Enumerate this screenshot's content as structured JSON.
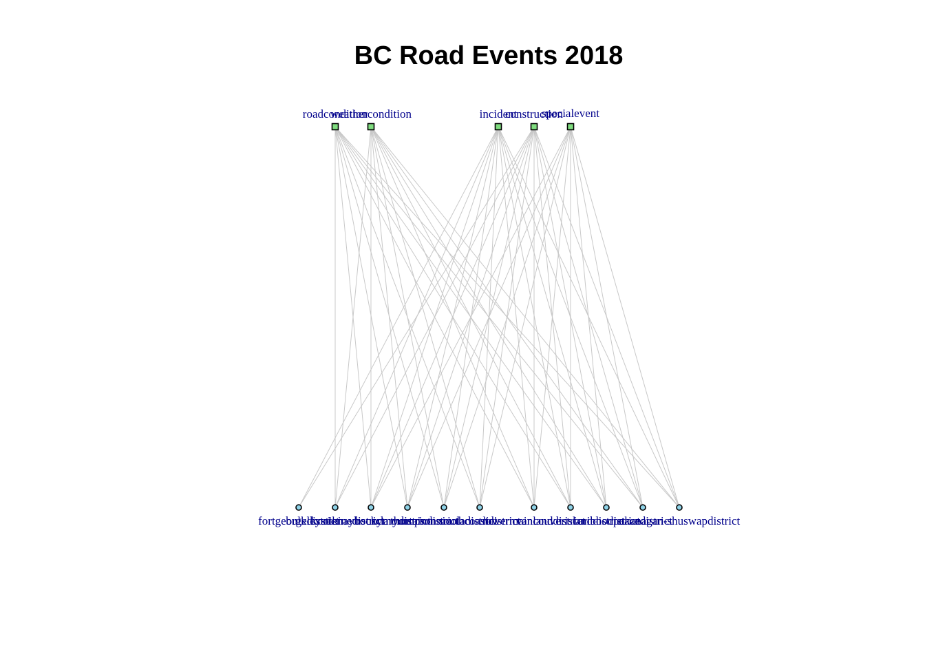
{
  "title": "BC Road Events 2018",
  "colors": {
    "type_node": "#7fdc7f",
    "district_node": "#8fd3e8",
    "edge": "#c8c8c8",
    "label": "#00008b"
  },
  "graph": {
    "layout": "bipartite",
    "event_types": [
      "roadcondition",
      "weathercondition",
      "incident",
      "construction",
      "specialevent"
    ],
    "districts": [
      "fortgeorgedistrict",
      "bulkleystikinedistrict",
      "kootenayboundarydistrict",
      "rockymountaindistrict",
      "thompsonnicoladistrict",
      "southcoastdistrict",
      "lowermainlanddistrict",
      "vancouverislanddistrict",
      "cariboodistrict",
      "peacedistrict",
      "okanagan-shuswapdistrict"
    ],
    "edges": [
      [
        "roadcondition",
        "bulkleystikinedistrict"
      ],
      [
        "roadcondition",
        "kootenayboundarydistrict"
      ],
      [
        "roadcondition",
        "rockymountaindistrict"
      ],
      [
        "roadcondition",
        "thompsonnicoladistrict"
      ],
      [
        "roadcondition",
        "southcoastdistrict"
      ],
      [
        "roadcondition",
        "lowermainlanddistrict"
      ],
      [
        "roadcondition",
        "vancouverislanddistrict"
      ],
      [
        "roadcondition",
        "cariboodistrict"
      ],
      [
        "roadcondition",
        "peacedistrict"
      ],
      [
        "roadcondition",
        "okanagan-shuswapdistrict"
      ],
      [
        "weathercondition",
        "bulkleystikinedistrict"
      ],
      [
        "weathercondition",
        "kootenayboundarydistrict"
      ],
      [
        "weathercondition",
        "rockymountaindistrict"
      ],
      [
        "weathercondition",
        "thompsonnicoladistrict"
      ],
      [
        "weathercondition",
        "southcoastdistrict"
      ],
      [
        "weathercondition",
        "lowermainlanddistrict"
      ],
      [
        "weathercondition",
        "vancouverislanddistrict"
      ],
      [
        "weathercondition",
        "cariboodistrict"
      ],
      [
        "weathercondition",
        "peacedistrict"
      ],
      [
        "weathercondition",
        "okanagan-shuswapdistrict"
      ],
      [
        "incident",
        "fortgeorgedistrict"
      ],
      [
        "incident",
        "bulkleystikinedistrict"
      ],
      [
        "incident",
        "kootenayboundarydistrict"
      ],
      [
        "incident",
        "rockymountaindistrict"
      ],
      [
        "incident",
        "thompsonnicoladistrict"
      ],
      [
        "incident",
        "southcoastdistrict"
      ],
      [
        "incident",
        "lowermainlanddistrict"
      ],
      [
        "incident",
        "vancouverislanddistrict"
      ],
      [
        "incident",
        "cariboodistrict"
      ],
      [
        "incident",
        "peacedistrict"
      ],
      [
        "incident",
        "okanagan-shuswapdistrict"
      ],
      [
        "construction",
        "fortgeorgedistrict"
      ],
      [
        "construction",
        "bulkleystikinedistrict"
      ],
      [
        "construction",
        "kootenayboundarydistrict"
      ],
      [
        "construction",
        "rockymountaindistrict"
      ],
      [
        "construction",
        "thompsonnicoladistrict"
      ],
      [
        "construction",
        "southcoastdistrict"
      ],
      [
        "construction",
        "lowermainlanddistrict"
      ],
      [
        "construction",
        "vancouverislanddistrict"
      ],
      [
        "construction",
        "cariboodistrict"
      ],
      [
        "construction",
        "peacedistrict"
      ],
      [
        "construction",
        "okanagan-shuswapdistrict"
      ],
      [
        "specialevent",
        "kootenayboundarydistrict"
      ],
      [
        "specialevent",
        "rockymountaindistrict"
      ],
      [
        "specialevent",
        "thompsonnicoladistrict"
      ],
      [
        "specialevent",
        "southcoastdistrict"
      ],
      [
        "specialevent",
        "lowermainlanddistrict"
      ],
      [
        "specialevent",
        "vancouverislanddistrict"
      ],
      [
        "specialevent",
        "cariboodistrict"
      ],
      [
        "specialevent",
        "peacedistrict"
      ],
      [
        "specialevent",
        "okanagan-shuswapdistrict"
      ]
    ]
  }
}
